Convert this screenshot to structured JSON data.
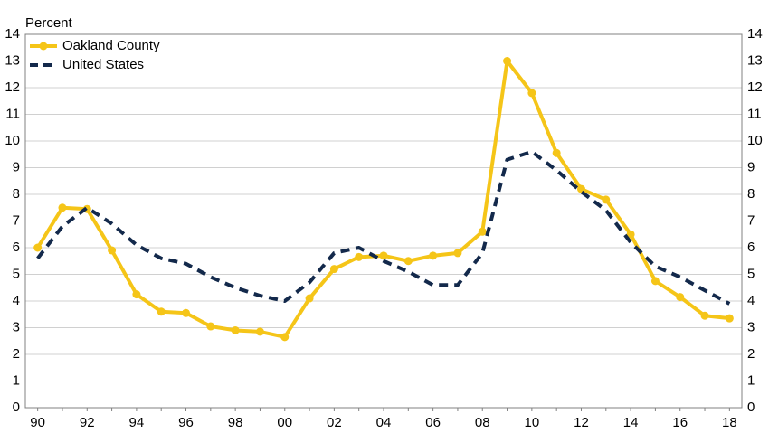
{
  "chart_data": {
    "type": "line",
    "y_label": "Percent",
    "categories": [
      "90",
      null,
      "92",
      null,
      "94",
      null,
      "96",
      null,
      "98",
      null,
      "00",
      null,
      "02",
      null,
      "04",
      null,
      "06",
      null,
      "08",
      null,
      "10",
      null,
      "12",
      null,
      "14",
      null,
      "16",
      null,
      "18"
    ],
    "series": [
      {
        "name": "Oakland County",
        "color": "#f5c518",
        "style": "solid",
        "markers": true,
        "values": [
          6.0,
          7.5,
          7.45,
          5.9,
          4.25,
          3.6,
          3.55,
          3.05,
          2.9,
          2.85,
          2.65,
          4.1,
          5.2,
          5.65,
          5.7,
          5.5,
          5.7,
          5.8,
          6.6,
          13.0,
          11.8,
          9.55,
          8.2,
          7.8,
          6.5,
          4.75,
          4.15,
          3.45,
          3.35
        ]
      },
      {
        "name": "United States",
        "color": "#13294b",
        "style": "dashed",
        "markers": false,
        "values": [
          5.6,
          6.8,
          7.5,
          6.9,
          6.1,
          5.6,
          5.4,
          4.9,
          4.5,
          4.2,
          4.0,
          4.7,
          5.8,
          6.0,
          5.5,
          5.1,
          4.6,
          4.6,
          5.8,
          9.3,
          9.6,
          8.9,
          8.1,
          7.4,
          6.2,
          5.3,
          4.9,
          4.4,
          3.9
        ]
      }
    ],
    "ylim": [
      0,
      14
    ],
    "yticks": [
      0,
      1,
      2,
      3,
      4,
      5,
      6,
      7,
      8,
      9,
      10,
      11,
      12,
      13,
      14
    ],
    "grid": true,
    "right_axis": true,
    "legend": "upper left"
  }
}
